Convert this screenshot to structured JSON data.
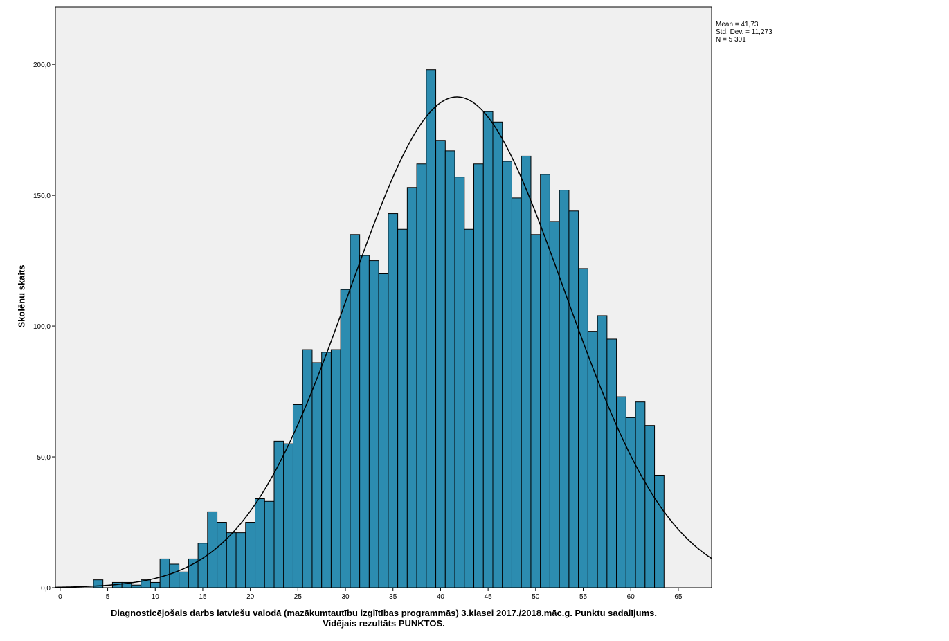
{
  "chart_data": {
    "type": "bar",
    "subtype": "histogram",
    "xlabel_line1": "Diagnosticējošais darbs latviešu valodā (mazākumtautību izglītības programmās) 3.klasei 2017./2018.māc.g. Punktu sadalījums.",
    "xlabel_line2": "Vidējais rezultāts PUNKTOS.",
    "ylabel": "Skolēnu skaits",
    "xlim": [
      -0.5,
      68.5
    ],
    "ylim": [
      0,
      222
    ],
    "x_ticks": [
      0,
      5,
      10,
      15,
      20,
      25,
      30,
      35,
      40,
      45,
      50,
      55,
      60,
      65
    ],
    "x_tick_labels": [
      "0",
      "5",
      "10",
      "15",
      "20",
      "25",
      "30",
      "35",
      "40",
      "45",
      "50",
      "55",
      "60",
      "65"
    ],
    "y_ticks": [
      0,
      50,
      100,
      150,
      200
    ],
    "y_tick_labels": [
      "0,0",
      "50,0",
      "100,0",
      "150,0",
      "200,0"
    ],
    "bins_x": [
      4,
      5,
      6,
      7,
      8,
      9,
      10,
      11,
      12,
      13,
      14,
      15,
      16,
      17,
      18,
      19,
      20,
      21,
      22,
      23,
      24,
      25,
      26,
      27,
      28,
      29,
      30,
      31,
      32,
      33,
      34,
      35,
      36,
      37,
      38,
      39,
      40,
      41,
      42,
      43,
      44,
      45,
      46,
      47,
      48,
      49,
      50,
      51,
      52,
      53,
      54,
      55,
      56,
      57,
      58,
      59,
      60,
      61,
      62,
      63
    ],
    "counts": [
      3,
      0,
      2,
      2,
      1,
      3,
      2,
      11,
      9,
      6,
      11,
      17,
      29,
      25,
      21,
      21,
      25,
      34,
      33,
      56,
      55,
      70,
      91,
      86,
      90,
      91,
      114,
      135,
      127,
      125,
      120,
      143,
      137,
      153,
      162,
      198,
      171,
      167,
      157,
      137,
      162,
      182,
      178,
      163,
      149,
      165,
      135,
      158,
      140,
      152,
      144,
      122,
      98,
      104,
      95,
      73,
      65,
      71,
      62,
      43
    ],
    "normal_curve": {
      "mean": 41.73,
      "std": 11.273,
      "n": 5301
    },
    "stats_text": [
      "Mean = 41,73",
      "Std. Dev. = 11,273",
      "N = 5 301"
    ],
    "bar_color": "#2c8cb0",
    "bar_edge_color": "#000000",
    "plot_background": "#f0f0f0",
    "grid": false,
    "legend": "none"
  }
}
